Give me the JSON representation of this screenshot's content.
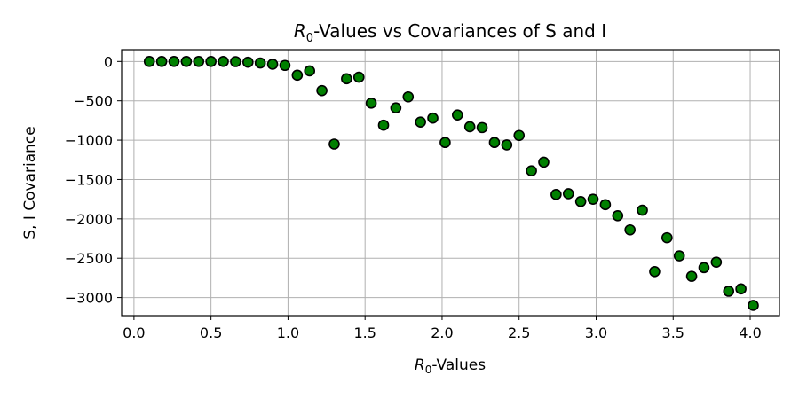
{
  "chart_data": {
    "type": "scatter",
    "title_prefix": "R",
    "title_sub": "0",
    "title_suffix": "-Values vs Covariances of S and I",
    "xlabel_prefix": "R",
    "xlabel_sub": "0",
    "xlabel_suffix": "-Values",
    "ylabel": "S, I Covariance",
    "xlim": [
      -0.08,
      4.19
    ],
    "ylim": [
      -3230,
      150
    ],
    "xticks": [
      0.0,
      0.5,
      1.0,
      1.5,
      2.0,
      2.5,
      3.0,
      3.5,
      4.0
    ],
    "xtick_labels": [
      "0.0",
      "0.5",
      "1.0",
      "1.5",
      "2.0",
      "2.5",
      "3.0",
      "3.5",
      "4.0"
    ],
    "yticks": [
      0,
      -500,
      -1000,
      -1500,
      -2000,
      -2500,
      -3000
    ],
    "ytick_labels": [
      "0",
      "−500",
      "−1000",
      "−1500",
      "−2000",
      "−2500",
      "−3000"
    ],
    "grid": true,
    "marker_color": "#008000",
    "marker_edge_color": "#000000",
    "series": [
      {
        "x": [
          0.1,
          0.18,
          0.26,
          0.34,
          0.42,
          0.5,
          0.58,
          0.66,
          0.74,
          0.82,
          0.9,
          0.98,
          1.06,
          1.14,
          1.22,
          1.3,
          1.38,
          1.46,
          1.54,
          1.62,
          1.7,
          1.78,
          1.86,
          1.94,
          2.02,
          2.1,
          2.18,
          2.26,
          2.34,
          2.42,
          2.5,
          2.58,
          2.66,
          2.74,
          2.82,
          2.9,
          2.98,
          3.06,
          3.14,
          3.22,
          3.3,
          3.38,
          3.46,
          3.54,
          3.62,
          3.7,
          3.78,
          3.86,
          3.94,
          4.02
        ],
        "y": [
          0,
          0,
          0,
          0,
          0,
          0,
          0,
          -2,
          -10,
          -20,
          -35,
          -50,
          -175,
          -120,
          -370,
          -1050,
          -220,
          -200,
          -530,
          -810,
          -590,
          -450,
          -770,
          -720,
          -1030,
          -680,
          -830,
          -840,
          -1030,
          -1060,
          -940,
          -1390,
          -1280,
          -1690,
          -1680,
          -1780,
          -1750,
          -1820,
          -1960,
          -2140,
          -1890,
          -2670,
          -2240,
          -2470,
          -2730,
          -2620,
          -2550,
          -2920,
          -2890,
          -3100
        ]
      }
    ]
  }
}
